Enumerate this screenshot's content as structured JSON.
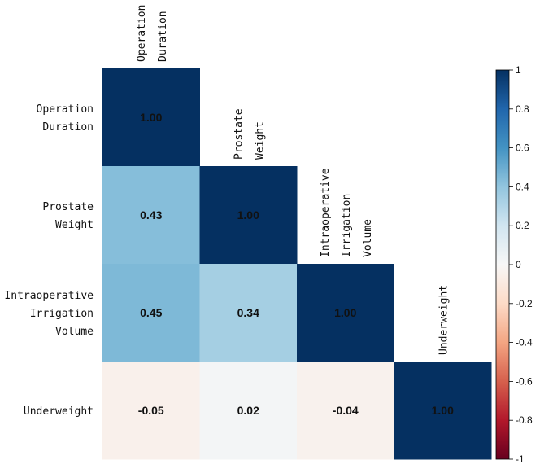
{
  "chart_data": {
    "type": "heatmap",
    "title": "",
    "variables": [
      {
        "id": "operation-duration",
        "lines": [
          "Operation",
          "Duration"
        ]
      },
      {
        "id": "prostate-weight",
        "lines": [
          "Prostate",
          "Weight"
        ]
      },
      {
        "id": "intraoperative-irrigation-volume",
        "lines": [
          "Intraoperative",
          "Irrigation",
          "Volume"
        ]
      },
      {
        "id": "underweight",
        "lines": [
          "Underweight"
        ]
      }
    ],
    "matrix": [
      [
        1.0,
        null,
        null,
        null
      ],
      [
        0.43,
        1.0,
        null,
        null
      ],
      [
        0.45,
        0.34,
        1.0,
        null
      ],
      [
        -0.05,
        0.02,
        -0.04,
        1.0
      ]
    ],
    "value_labels": [
      [
        "1.00",
        "",
        "",
        ""
      ],
      [
        "0.43",
        "1.00",
        "",
        ""
      ],
      [
        "0.45",
        "0.34",
        "1.00",
        ""
      ],
      [
        "-0.05",
        "0.02",
        "-0.04",
        "1.00"
      ]
    ],
    "mask": "upper-triangle",
    "colorbar": {
      "range": [
        -1,
        1
      ],
      "ticks": [
        "1",
        "0.8",
        "0.6",
        "0.4",
        "0.2",
        "0",
        "-0.2",
        "-0.4",
        "-0.6",
        "-0.8",
        "-1"
      ],
      "colormap": "RdBu",
      "low_color": "#67001f",
      "mid_color": "#f7f7f7",
      "high_color": "#053061"
    }
  }
}
